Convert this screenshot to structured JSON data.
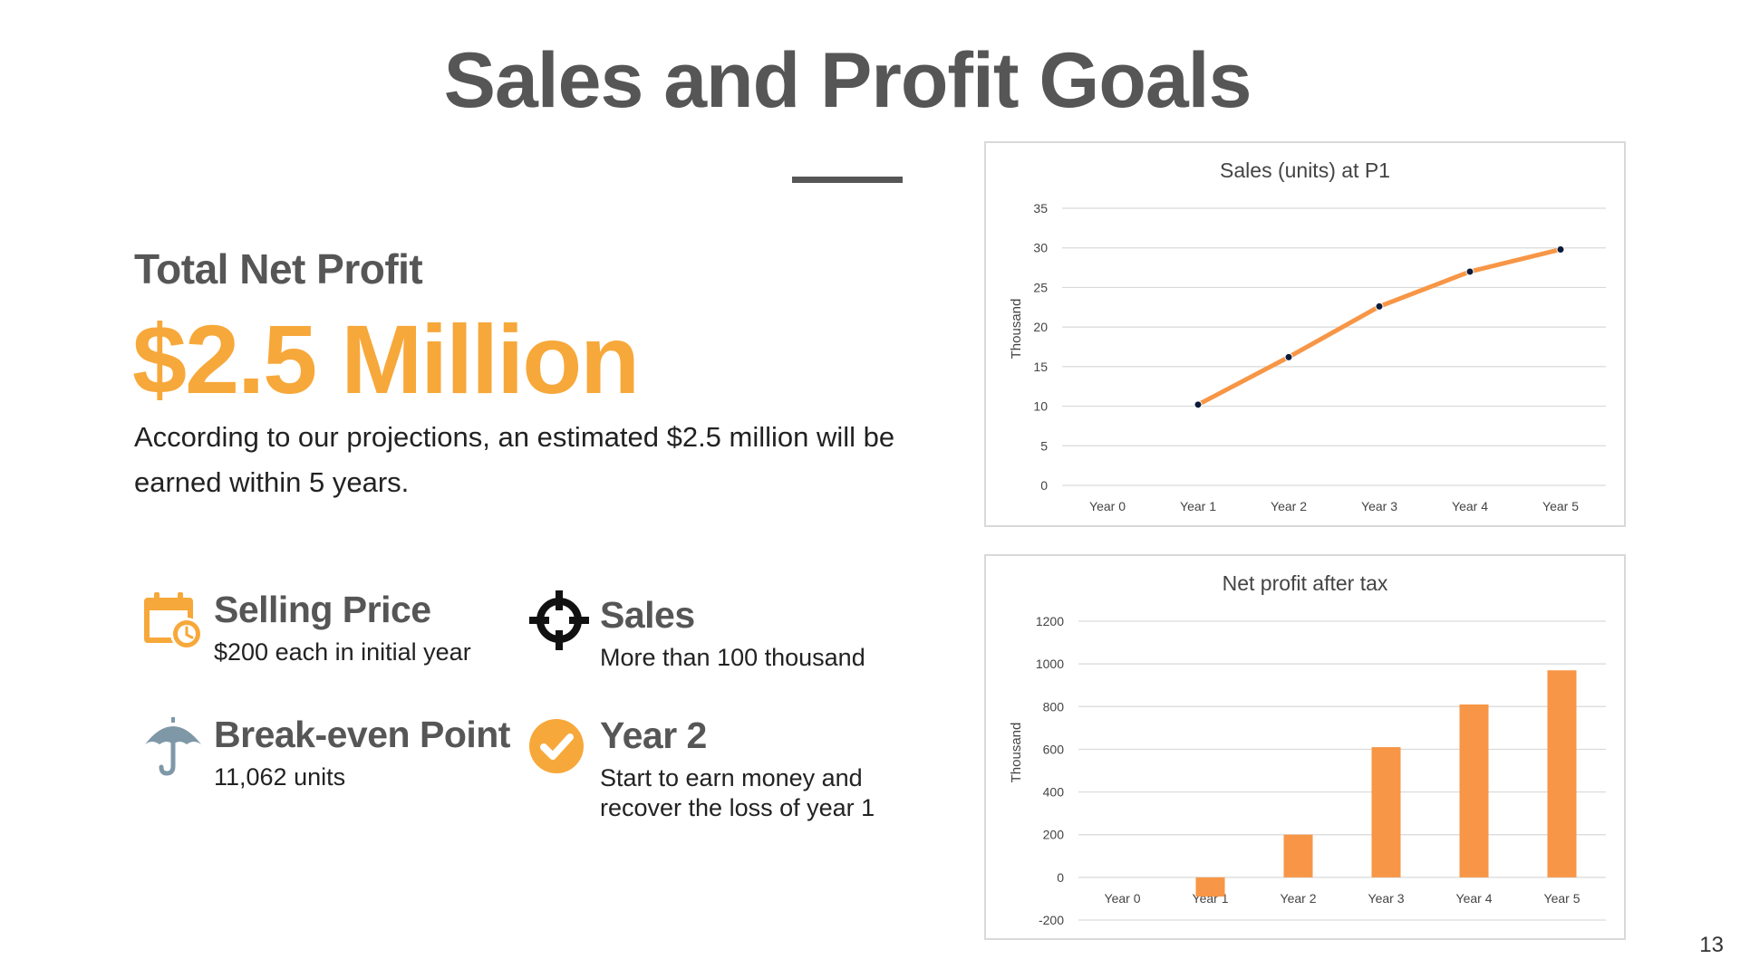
{
  "slide": {
    "title": "Sales and Profit Goals",
    "page_number": "13"
  },
  "net_profit": {
    "label": "Total Net Profit",
    "value": "$2.5 Million",
    "description": "According to our projections, an estimated $2.5 million will be earned within 5 years."
  },
  "features": [
    {
      "icon": "calendar-clock-icon",
      "heading": "Selling Price",
      "sub": "$200 each in initial year"
    },
    {
      "icon": "crosshair-target-icon",
      "heading": "Sales",
      "sub": "More than 100 thousand"
    },
    {
      "icon": "umbrella-icon",
      "heading": "Break-even Point",
      "sub": "11,062 units"
    },
    {
      "icon": "check-circle-icon",
      "heading": "Year 2",
      "sub": "Start to earn money and recover the loss of year 1"
    }
  ],
  "colors": {
    "accent": "#f7a83a",
    "chart_series": "#f79646",
    "heading": "#565656",
    "umbrella": "#7f98a8"
  },
  "chart_data": [
    {
      "type": "line",
      "title": "Sales (units) at P1",
      "ylabel": "Thousand",
      "xlabel": "",
      "categories": [
        "Year 0",
        "Year 1",
        "Year 2",
        "Year 3",
        "Year 4",
        "Year 5"
      ],
      "values": [
        null,
        10.2,
        16.2,
        22.6,
        27,
        29.8
      ],
      "ylim": [
        0,
        35
      ],
      "yticks": [
        0,
        5,
        10,
        15,
        20,
        25,
        30,
        35
      ],
      "grid": true,
      "legend": "none"
    },
    {
      "type": "bar",
      "title": "Net profit after tax",
      "ylabel": "Thousand",
      "xlabel": "",
      "categories": [
        "Year 0",
        "Year 1",
        "Year 2",
        "Year 3",
        "Year 4",
        "Year 5"
      ],
      "values": [
        0,
        -90,
        200,
        610,
        810,
        970
      ],
      "ylim": [
        -200,
        1200
      ],
      "yticks": [
        -200,
        0,
        200,
        400,
        600,
        800,
        1000,
        1200
      ],
      "grid": true,
      "legend": "none"
    }
  ]
}
